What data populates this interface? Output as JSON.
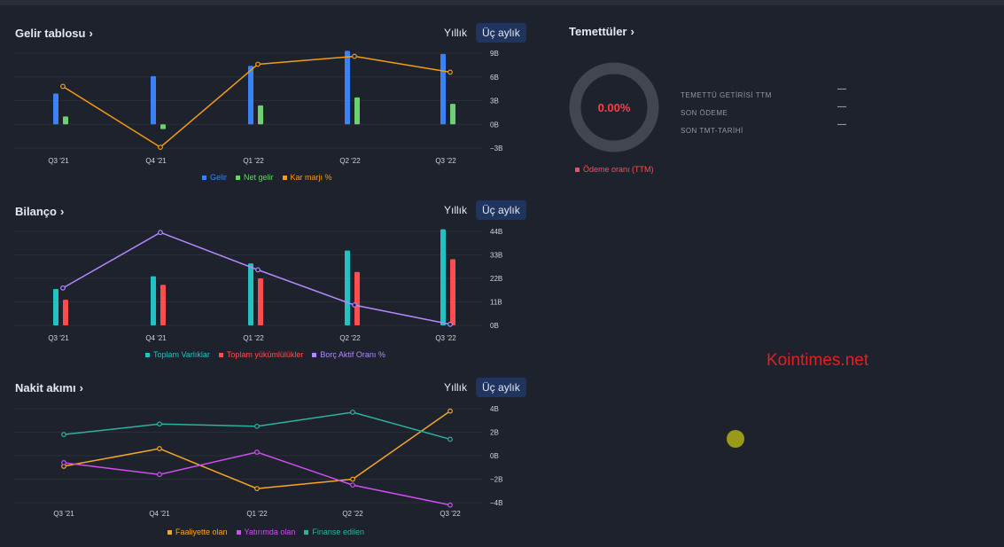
{
  "income": {
    "title": "Gelir tablosu",
    "period_yearly": "Yıllık",
    "period_quarterly": "Üç aylık",
    "legend": [
      {
        "label": "Gelir",
        "color": "#3b82f6"
      },
      {
        "label": "Net gelir",
        "color": "#6fcf73"
      },
      {
        "label": "Kar marjı %",
        "color": "#f39c12"
      }
    ]
  },
  "balance": {
    "title": "Bilanço",
    "period_yearly": "Yıllık",
    "period_quarterly": "Üç aylık",
    "legend": [
      {
        "label": "Toplam Varlıklar",
        "color": "#22c1c3"
      },
      {
        "label": "Toplam yükümlülükler",
        "color": "#ff4d4f"
      },
      {
        "label": "Borç Aktif Oranı %",
        "color": "#b388ff"
      }
    ]
  },
  "cashflow": {
    "title": "Nakit akımı",
    "period_yearly": "Yıllık",
    "period_quarterly": "Üç aylık",
    "legend": [
      {
        "label": "Faaliyette olan",
        "color": "#f5a623"
      },
      {
        "label": "Yatırımda olan",
        "color": "#d04ef0"
      },
      {
        "label": "Finanse edilen",
        "color": "#2bb3a0"
      }
    ]
  },
  "dividends": {
    "title": "Temettüler",
    "payout_value": "0.00%",
    "rows": [
      {
        "label": "TEMETTÜ GETİRİSİ TTM",
        "value": "—"
      },
      {
        "label": "SON ÖDEME",
        "value": "—"
      },
      {
        "label": "SON TMT-TARİHİ",
        "value": "—"
      }
    ],
    "legend_label": "Ödeme oranı (TTM)",
    "legend_color": "#ff4d4f"
  },
  "watermark": "Kointimes.net",
  "chart_data": [
    {
      "type": "bar",
      "title": "Gelir tablosu",
      "categories": [
        "Q3 '21",
        "Q4 '21",
        "Q1 '22",
        "Q2 '22",
        "Q3 '22"
      ],
      "series": [
        {
          "name": "Gelir",
          "values": [
            3.9,
            6.1,
            7.4,
            9.3,
            8.9
          ],
          "kind": "bar",
          "color": "#3b82f6"
        },
        {
          "name": "Net gelir",
          "values": [
            1.0,
            -0.6,
            2.4,
            3.4,
            2.6
          ],
          "kind": "bar",
          "color": "#6fcf73"
        },
        {
          "name": "Kar marjı %",
          "values": [
            4.8,
            -2.9,
            7.6,
            8.6,
            6.6
          ],
          "kind": "line",
          "color": "#f39c12"
        }
      ],
      "yticks": [
        "9B",
        "6B",
        "3B",
        "0B",
        "−3B"
      ],
      "ylim": [
        -3,
        9
      ]
    },
    {
      "type": "bar",
      "title": "Bilanço",
      "categories": [
        "Q3 '21",
        "Q4 '21",
        "Q1 '22",
        "Q2 '22",
        "Q3 '22"
      ],
      "series": [
        {
          "name": "Toplam Varlıklar",
          "values": [
            17,
            23,
            29,
            35,
            45
          ],
          "kind": "bar",
          "color": "#22c1c3"
        },
        {
          "name": "Toplam yükümlülükler",
          "values": [
            12,
            19,
            22,
            25,
            31
          ],
          "kind": "bar",
          "color": "#ff4d4f"
        },
        {
          "name": "Borç Aktif Oranı %",
          "values": [
            17.5,
            43.5,
            26,
            9.5,
            0.5
          ],
          "kind": "line",
          "color": "#b388ff"
        }
      ],
      "yticks": [
        "44B",
        "33B",
        "22B",
        "11B",
        "0B"
      ],
      "ylim": [
        0,
        44
      ]
    },
    {
      "type": "line",
      "title": "Nakit akımı",
      "categories": [
        "Q3 '21",
        "Q4 '21",
        "Q1 '22",
        "Q2 '22",
        "Q3 '22"
      ],
      "series": [
        {
          "name": "Faaliyette olan",
          "values": [
            -0.9,
            0.6,
            -2.8,
            -2.0,
            3.8
          ],
          "color": "#f5a623"
        },
        {
          "name": "Yatırımda olan",
          "values": [
            -0.6,
            -1.6,
            0.3,
            -2.5,
            -4.2
          ],
          "color": "#d04ef0"
        },
        {
          "name": "Finanse edilen",
          "values": [
            1.8,
            2.7,
            2.5,
            3.7,
            1.4
          ],
          "color": "#2bb3a0"
        }
      ],
      "yticks": [
        "4B",
        "2B",
        "0B",
        "−2B",
        "−4B"
      ],
      "ylim": [
        -4,
        4
      ]
    }
  ]
}
